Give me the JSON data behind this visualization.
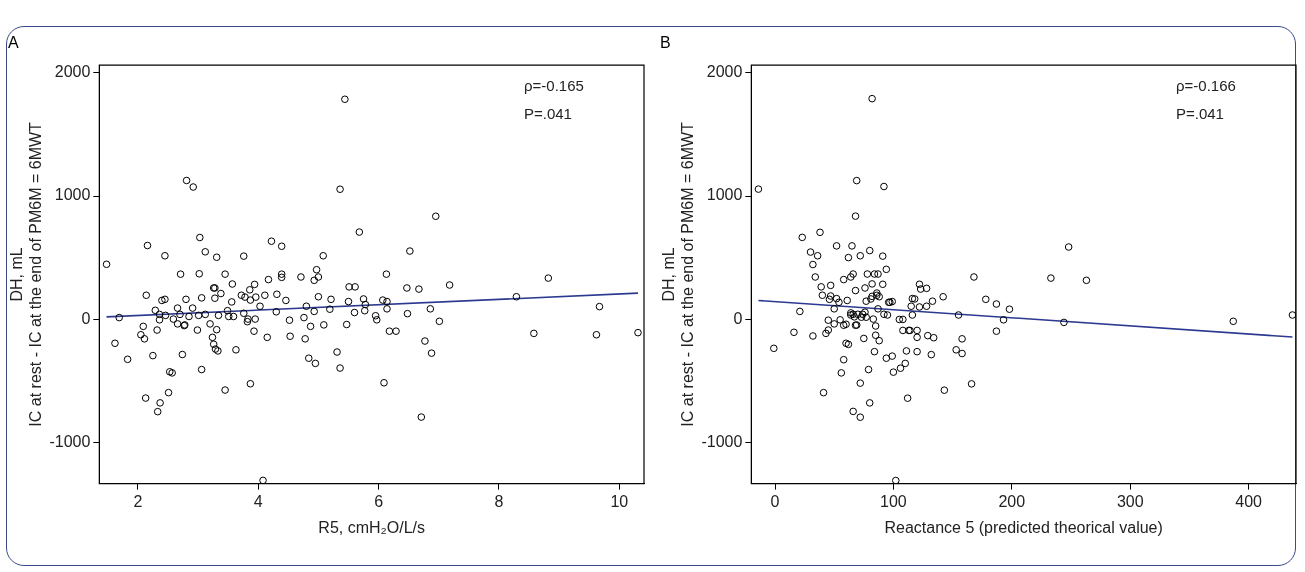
{
  "chart_data": [
    {
      "type": "scatter",
      "title": "A",
      "xlabel": "R5, cmH₂O/L/s",
      "ylabel": "DH, mL\nIC at rest - IC at the end of PM6M = 6MWT",
      "xlim": [
        1.36,
        10.41
      ],
      "xticks": [
        2,
        4,
        6,
        8,
        10
      ],
      "ylim": [
        -1330,
        2060
      ],
      "yticks": [
        -1000,
        0,
        1000,
        2000
      ],
      "grid": false,
      "legend": false,
      "annotations": [
        "ρ=-0.165",
        "P=.041"
      ],
      "series": [
        {
          "type": "scatter",
          "marker": "circle",
          "color": "#000000",
          "x": [
            1.48,
            1.62,
            1.69,
            1.83,
            2.05,
            2.09,
            2.11,
            2.13,
            2.14,
            2.16,
            2.25,
            2.29,
            2.32,
            2.33,
            2.36,
            2.36,
            2.37,
            2.4,
            2.45,
            2.45,
            2.46,
            2.51,
            2.53,
            2.57,
            2.59,
            2.66,
            2.66,
            2.7,
            2.71,
            2.74,
            2.77,
            2.78,
            2.8,
            2.81,
            2.85,
            2.91,
            2.92,
            2.99,
            3.01,
            3.02,
            3.03,
            3.06,
            3.06,
            3.12,
            3.12,
            3.2,
            3.24,
            3.26,
            3.28,
            3.28,
            3.26,
            3.29,
            3.31,
            3.31,
            3.33,
            3.34,
            3.38,
            3.45,
            3.45,
            3.49,
            3.51,
            3.56,
            3.57,
            3.59,
            3.63,
            3.72,
            3.76,
            3.76,
            3.78,
            3.82,
            3.83,
            3.86,
            3.87,
            3.87,
            3.93,
            3.94,
            3.95,
            3.96,
            4.03,
            4.08,
            4.11,
            4.15,
            4.17,
            4.22,
            4.3,
            4.31,
            4.39,
            4.39,
            4.39,
            4.46,
            4.52,
            4.53,
            4.71,
            4.76,
            4.78,
            4.8,
            4.84,
            4.87,
            4.93,
            4.93,
            4.95,
            4.97,
            5.0,
            5.0,
            5.08,
            5.09,
            5.19,
            5.21,
            5.31,
            5.36,
            5.36,
            5.44,
            5.68,
            5.51,
            5.61,
            5.5,
            5.6,
            5.47,
            5.75,
            5.78,
            5.77,
            5.95,
            5.97,
            6.07,
            6.13,
            6.14,
            6.14,
            6.09,
            6.18,
            6.29,
            6.47,
            6.48,
            6.52,
            6.67,
            6.71,
            6.77,
            6.86,
            6.88,
            6.95,
            7.01,
            7.18,
            8.29,
            8.82,
            8.58,
            9.67,
            9.62,
            10.31
          ],
          "values": [
            447,
            -193,
            15,
            -323,
            -124,
            -56,
            -157,
            -637,
            196,
            599,
            -293,
            74,
            -86,
            -747,
            41,
            -3,
            -676,
            154,
            163,
            516,
            33,
            -593,
            -424,
            -433,
            3,
            92,
            -36,
            41,
            367,
            -284,
            -50,
            -44,
            163,
            1126,
            24,
            92,
            1073,
            -86,
            33,
            370,
            664,
            -406,
            175,
            41,
            548,
            -36,
            -145,
            255,
            172,
            255,
            -201,
            -240,
            504,
            -83,
            -255,
            33,
            210,
            -572,
            367,
            71,
            24,
            142,
            287,
            24,
            -246,
            196,
            513,
            50,
            181,
            -18,
            3,
            240,
            -521,
            157,
            -95,
            284,
            3,
            181,
            107,
            -1304,
            196,
            -145,
            323,
            634,
            62,
            204,
            593,
            367,
            341,
            154,
            -6,
            -136,
            344,
            15,
            -157,
            107,
            -314,
            -56,
            65,
            317,
            -356,
            403,
            344,
            184,
            516,
            -44,
            83,
            163,
            -264,
            1055,
            -394,
            1784,
            708,
            264,
            264,
            145,
            56,
            -41,
            166,
            121,
            71,
            30,
            -3,
            157,
            367,
            145,
            86,
            -513,
            -95,
            -95,
            255,
            47,
            554,
            246,
            -791,
            -175,
            86,
            -273,
            836,
            -15,
            279,
            184,
            335,
            -113,
            104,
            -124,
            -107
          ]
        },
        {
          "type": "line",
          "marker": "none",
          "color": "#2b3990",
          "x": [
            1.48,
            10.31
          ],
          "values": [
            21,
            213
          ]
        }
      ]
    },
    {
      "type": "scatter",
      "title": "B",
      "xlabel": "Reactance 5 (predicted theorical value)",
      "ylabel": "DH, mL\nIC at rest - IC at the end of PM6M = 6MWT",
      "xlim": [
        -20,
        440
      ],
      "xticks": [
        0,
        100,
        200,
        300,
        400
      ],
      "ylim": [
        -1330,
        2060
      ],
      "yticks": [
        -1000,
        0,
        1000,
        2000
      ],
      "grid": false,
      "legend": false,
      "annotations": [
        "ρ=-0.166",
        "P=.041"
      ],
      "series": [
        {
          "type": "scatter",
          "marker": "circle",
          "color": "#000000",
          "x": [
            -14,
            -1,
            16,
            21,
            23,
            30,
            32,
            32,
            34,
            36,
            38,
            39,
            40,
            41,
            43,
            45,
            45,
            47,
            46,
            47,
            50,
            50,
            52,
            52,
            54,
            55,
            56,
            58,
            58,
            58,
            60,
            61,
            60,
            62,
            62,
            64,
            64,
            64,
            65,
            66,
            66,
            66,
            67,
            68,
            68,
            69,
            68,
            69,
            70,
            72,
            72,
            72,
            73,
            74,
            75,
            76,
            76,
            77,
            77,
            78,
            79,
            80,
            80,
            81,
            82,
            82,
            83,
            84,
            84,
            85,
            85,
            86,
            86,
            87,
            88,
            82,
            88,
            87,
            91,
            91,
            92,
            92,
            94,
            94,
            95,
            96,
            97,
            99,
            99,
            100,
            102,
            105,
            106,
            108,
            108,
            110,
            111,
            112,
            113,
            114,
            115,
            116,
            116,
            118,
            120,
            120,
            120,
            122,
            122,
            123,
            128,
            129,
            128,
            132,
            133,
            134,
            143,
            142,
            155,
            158,
            153,
            158,
            166,
            168,
            178,
            187,
            187,
            193,
            198,
            233,
            244,
            248,
            263,
            387,
            437
          ],
          "values": [
            1056,
            -234,
            -104,
            65,
            665,
            546,
            -134,
            445,
            344,
            516,
            706,
            264,
            196,
            -593,
            -113,
            -86,
            -6,
            276,
            163,
            190,
            -36,
            86,
            596,
            169,
            139,
            -3,
            -433,
            -47,
            323,
            -326,
            -39,
            154,
            -193,
            501,
            -202,
            344,
            53,
            36,
            596,
            -745,
            368,
            42,
            21,
            -47,
            234,
            1125,
            837,
            -45,
            42,
            516,
            -792,
            -516,
            18,
            42,
            -154,
            59,
            255,
            148,
            18,
            368,
            -406,
            558,
            -676,
            166,
            288,
            187,
            3,
            -261,
            368,
            -53,
            -128,
            214,
            196,
            368,
            -172,
            1789,
            184,
            86,
            285,
            513,
            42,
            1077,
            -314,
            406,
            36,
            139,
            139,
            145,
            -297,
            -427,
            -1305,
            0,
            -395,
            0,
            -89,
            -356,
            -255,
            -638,
            -89,
            -89,
            107,
            36,
            169,
            166,
            -89,
            -145,
            -261,
            285,
            101,
            246,
            252,
            -131,
            107,
            -285,
            148,
            -148,
            -573,
            184,
            36,
            -157,
            -246,
            -276,
            -522,
            344,
            163,
            125,
            -95,
            -3,
            83,
            335,
            -24,
            587,
            317,
            -15,
            36
          ]
        },
        {
          "type": "line",
          "marker": "none",
          "color": "#2b3990",
          "x": [
            -14,
            437
          ],
          "values": [
            154,
            -142
          ]
        }
      ]
    }
  ]
}
